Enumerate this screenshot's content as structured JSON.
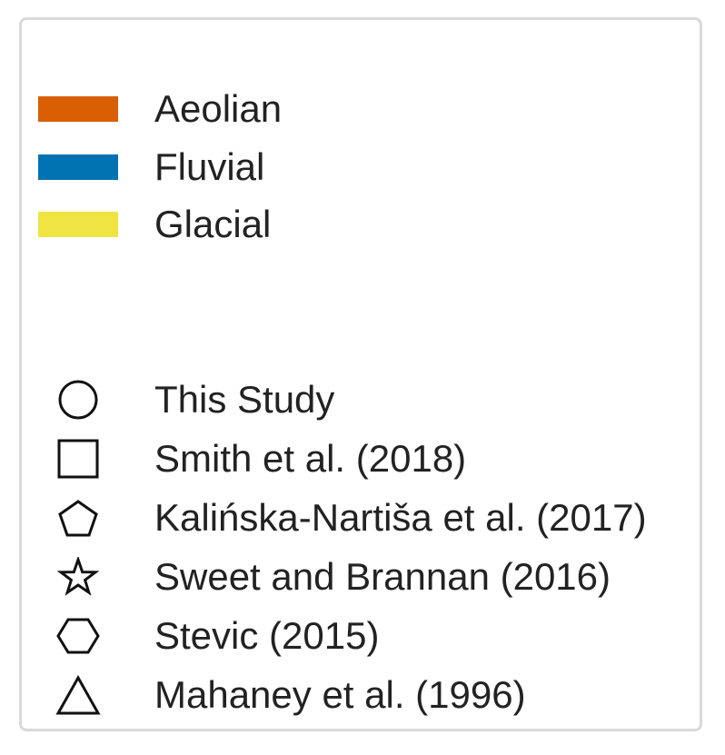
{
  "chart_data": {
    "type": "legend",
    "color_entries": [
      {
        "label": "Aeolian",
        "color": "#d95f02"
      },
      {
        "label": "Fluvial",
        "color": "#0072b2"
      },
      {
        "label": "Glacial",
        "color": "#f0e442"
      }
    ],
    "marker_entries": [
      {
        "label": "This Study",
        "marker": "circle"
      },
      {
        "label": "Smith et al. (2018)",
        "marker": "square"
      },
      {
        "label": "Kalińska-Nartiša et al. (2017)",
        "marker": "pentagon"
      },
      {
        "label": "Sweet and Brannan (2016)",
        "marker": "star"
      },
      {
        "label": "Stevic (2015)",
        "marker": "hexagon"
      },
      {
        "label": "Mahaney et al. (1996)",
        "marker": "triangle"
      }
    ]
  }
}
